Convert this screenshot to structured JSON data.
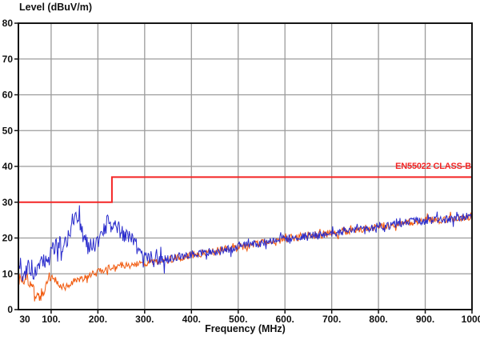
{
  "chart_data": {
    "type": "line",
    "title": "",
    "xlabel": "Frequency (MHz)",
    "ylabel": "Level (dBuV/m)",
    "x_axis": {
      "min": 30,
      "max": 1000,
      "unit": "MHz",
      "min_label": "30",
      "tick_values": [
        100,
        200,
        300,
        400,
        500,
        600,
        700,
        800,
        900,
        1000
      ],
      "tick_labels": [
        "100.",
        "200.",
        "300.",
        "400.",
        "500.",
        "600.",
        "700.",
        "800.",
        "900.",
        "1000"
      ]
    },
    "y_axis": {
      "min": 0,
      "max": 80,
      "tick_values": [
        0,
        10,
        20,
        30,
        40,
        50,
        60,
        70,
        80
      ],
      "tick_labels": [
        "0",
        "10",
        "20",
        "30",
        "40",
        "50",
        "60",
        "70",
        "80"
      ]
    },
    "grid": {
      "on": true,
      "color": "#9b9b9b",
      "x_lines": [
        100,
        200,
        300,
        400,
        500,
        600,
        700,
        800,
        900
      ],
      "y_lines": [
        10,
        20,
        30,
        40,
        50,
        60,
        70
      ]
    },
    "limit": {
      "label": "EN55022 CLASS-B",
      "color": "#f42525",
      "points": [
        [
          30,
          30
        ],
        [
          230,
          30
        ],
        [
          230,
          37
        ],
        [
          1000,
          37
        ]
      ]
    },
    "series": [
      {
        "name": "orange-trace",
        "color": "#f15a0e",
        "seed": 13,
        "noise": [
          {
            "until": 100,
            "amp": 1.4
          },
          {
            "until": 345,
            "amp": 0.9
          },
          {
            "until": 1001,
            "amp": 1.1
          }
        ],
        "points": [
          [
            30,
            9
          ],
          [
            35,
            8.5
          ],
          [
            40,
            8
          ],
          [
            45,
            8.5
          ],
          [
            50,
            8
          ],
          [
            55,
            7
          ],
          [
            60,
            6
          ],
          [
            65,
            5
          ],
          [
            70,
            4
          ],
          [
            75,
            3.2
          ],
          [
            80,
            4.2
          ],
          [
            85,
            5.5
          ],
          [
            90,
            7
          ],
          [
            95,
            8.5
          ],
          [
            100,
            9.5
          ],
          [
            105,
            9
          ],
          [
            110,
            8
          ],
          [
            115,
            7.2
          ],
          [
            120,
            6.6
          ],
          [
            125,
            6.4
          ],
          [
            130,
            6.2
          ],
          [
            135,
            6.6
          ],
          [
            140,
            7
          ],
          [
            145,
            7.5
          ],
          [
            150,
            8
          ],
          [
            155,
            8.2
          ],
          [
            160,
            8.6
          ],
          [
            165,
            8.4
          ],
          [
            170,
            8.8
          ],
          [
            175,
            9.2
          ],
          [
            180,
            9.4
          ],
          [
            185,
            9.8
          ],
          [
            190,
            10
          ],
          [
            195,
            10.2
          ],
          [
            200,
            10.6
          ],
          [
            215,
            11.2
          ],
          [
            230,
            12
          ],
          [
            250,
            12.4
          ],
          [
            270,
            12.6
          ],
          [
            285,
            12.8
          ],
          [
            300,
            13
          ],
          [
            315,
            13.3
          ],
          [
            330,
            13.6
          ],
          [
            345,
            13.9
          ],
          [
            360,
            14.3
          ],
          [
            380,
            14.8
          ],
          [
            400,
            15.2
          ],
          [
            425,
            15.7
          ],
          [
            450,
            16.2
          ],
          [
            475,
            16.9
          ],
          [
            500,
            17.4
          ],
          [
            525,
            18.1
          ],
          [
            550,
            18.5
          ],
          [
            575,
            19.3
          ],
          [
            600,
            19.9
          ],
          [
            625,
            20.2
          ],
          [
            650,
            20.7
          ],
          [
            675,
            20.9
          ],
          [
            700,
            21.4
          ],
          [
            725,
            21.9
          ],
          [
            750,
            22.2
          ],
          [
            775,
            22.7
          ],
          [
            800,
            23.3
          ],
          [
            825,
            23.5
          ],
          [
            850,
            24.3
          ],
          [
            875,
            24.5
          ],
          [
            900,
            24.9
          ],
          [
            925,
            25.1
          ],
          [
            950,
            25.3
          ],
          [
            975,
            25.5
          ],
          [
            1000,
            26.1
          ]
        ]
      },
      {
        "name": "blue-trace",
        "color": "#2a2ccc",
        "seed": 7,
        "noise": [
          {
            "until": 345,
            "amp": 2.4
          },
          {
            "until": 1001,
            "amp": 1.1
          }
        ],
        "points": [
          [
            30,
            12
          ],
          [
            34,
            13
          ],
          [
            38,
            9
          ],
          [
            42,
            8
          ],
          [
            46,
            10
          ],
          [
            50,
            13
          ],
          [
            54,
            10
          ],
          [
            58,
            12
          ],
          [
            62,
            9.5
          ],
          [
            66,
            11
          ],
          [
            70,
            10.5
          ],
          [
            75,
            12
          ],
          [
            80,
            14
          ],
          [
            85,
            13
          ],
          [
            90,
            15.5
          ],
          [
            95,
            14
          ],
          [
            100,
            17
          ],
          [
            105,
            16
          ],
          [
            110,
            18
          ],
          [
            115,
            17
          ],
          [
            120,
            19
          ],
          [
            125,
            18
          ],
          [
            130,
            20
          ],
          [
            135,
            19.5
          ],
          [
            140,
            22
          ],
          [
            145,
            24.5
          ],
          [
            150,
            26.5
          ],
          [
            153,
            25
          ],
          [
            156,
            26
          ],
          [
            160,
            25
          ],
          [
            165,
            23
          ],
          [
            170,
            21
          ],
          [
            175,
            19.5
          ],
          [
            180,
            18
          ],
          [
            185,
            17.5
          ],
          [
            190,
            18
          ],
          [
            195,
            17.5
          ],
          [
            200,
            18.5
          ],
          [
            205,
            19.5
          ],
          [
            210,
            21
          ],
          [
            215,
            22.5
          ],
          [
            220,
            24
          ],
          [
            225,
            25.3
          ],
          [
            230,
            24
          ],
          [
            235,
            23.5
          ],
          [
            240,
            22.5
          ],
          [
            250,
            22
          ],
          [
            260,
            20.5
          ],
          [
            270,
            19.5
          ],
          [
            280,
            18
          ],
          [
            290,
            16.5
          ],
          [
            300,
            16
          ],
          [
            310,
            15
          ],
          [
            320,
            14.2
          ],
          [
            330,
            13.8
          ],
          [
            345,
            14
          ],
          [
            360,
            14.5
          ],
          [
            380,
            15
          ],
          [
            400,
            15.3
          ],
          [
            425,
            15.8
          ],
          [
            450,
            16.3
          ],
          [
            475,
            16.8
          ],
          [
            500,
            17.3
          ],
          [
            525,
            18
          ],
          [
            550,
            18.6
          ],
          [
            575,
            19.2
          ],
          [
            600,
            19.8
          ],
          [
            625,
            20.3
          ],
          [
            650,
            20.6
          ],
          [
            675,
            21
          ],
          [
            700,
            21.3
          ],
          [
            725,
            21.8
          ],
          [
            750,
            22.3
          ],
          [
            775,
            22.6
          ],
          [
            800,
            23.2
          ],
          [
            825,
            23.6
          ],
          [
            850,
            24.2
          ],
          [
            875,
            24.6
          ],
          [
            900,
            24.8
          ],
          [
            925,
            25.2
          ],
          [
            950,
            25.2
          ],
          [
            975,
            25.6
          ],
          [
            1000,
            26.3
          ]
        ]
      }
    ],
    "style": {
      "border_color": "#151515",
      "background": "#ffffff",
      "tick_color": "#111111"
    }
  }
}
